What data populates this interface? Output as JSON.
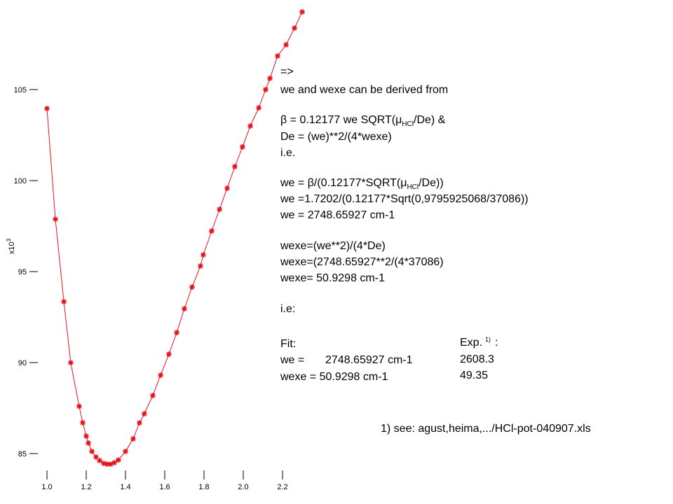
{
  "chart_data": {
    "type": "scatter",
    "y_label": {
      "base": "x10",
      "exponent": "3"
    },
    "xlim": [
      0.95,
      2.35
    ],
    "ylim": [
      84,
      110
    ],
    "xticks": [
      {
        "value": 1.0,
        "label": "1.0"
      },
      1.2,
      1.4,
      1.6,
      1.8,
      {
        "value": 2.0,
        "label": "2.0"
      },
      2.2
    ],
    "yticks": [
      85,
      90,
      95,
      100,
      105
    ],
    "series": [
      {
        "color": "#e8141c",
        "x": [
          1.0,
          1.043,
          1.086,
          1.121,
          1.164,
          1.182,
          1.2,
          1.211,
          1.229,
          1.25,
          1.268,
          1.289,
          1.307,
          1.325,
          1.343,
          1.364,
          1.4,
          1.439,
          1.471,
          1.496,
          1.539,
          1.579,
          1.621,
          1.661,
          1.7,
          1.739,
          1.782,
          1.796,
          1.839,
          1.879,
          1.918,
          1.957,
          1.996,
          2.036,
          2.079,
          2.114,
          2.136,
          2.175,
          2.218,
          2.261,
          2.3
        ],
        "values": [
          103.96,
          97.88,
          93.35,
          90.0,
          87.6,
          86.7,
          85.96,
          85.58,
          85.12,
          84.81,
          84.62,
          84.46,
          84.42,
          84.42,
          84.5,
          84.65,
          85.12,
          85.81,
          86.69,
          87.19,
          88.19,
          89.31,
          90.46,
          91.65,
          92.96,
          94.15,
          95.31,
          95.92,
          97.23,
          98.42,
          99.58,
          100.77,
          101.85,
          103.0,
          104.0,
          105.0,
          105.62,
          106.85,
          107.46,
          108.38,
          109.27
        ]
      }
    ]
  },
  "notes": [
    {
      "text": "=>"
    },
    {
      "text": "we and wexe can be derived from"
    },
    {
      "before": "β = 0.12177 we SQRT(μ",
      "sub": "HCl",
      "after": "/De) &"
    },
    {
      "text": "De = (we)**2/(4*wexe)"
    },
    {
      "text": "i.e."
    },
    {
      "before": "we = β/(0.12177*SQRT(μ",
      "sub": "HCl",
      "after": "/De))"
    },
    {
      "text": "we =1.7202/(0.12177*Sqrt(0,9795925068/37086))"
    },
    {
      "text": "we = 2748.65927 cm-1"
    },
    {
      "text": "wexe=(we**2)/(4*De)"
    },
    {
      "text": "wexe=(2748.65927**2/(4*37086)"
    },
    {
      "text": "wexe= 50.9298 cm-1"
    },
    {
      "text": "i.e:"
    }
  ],
  "fit": {
    "title": "Fit:",
    "we_label": "we =",
    "we_value": "2748.65927 cm-1",
    "wexe": "wexe = 50.9298 cm-1"
  },
  "exp": {
    "title": "Exp.",
    "ref": "1)",
    "colon": ":",
    "we": "2608.3",
    "wexe": "49.35"
  },
  "footnote": "1) see: agust,heima,.../HCl-pot-040907.xls"
}
